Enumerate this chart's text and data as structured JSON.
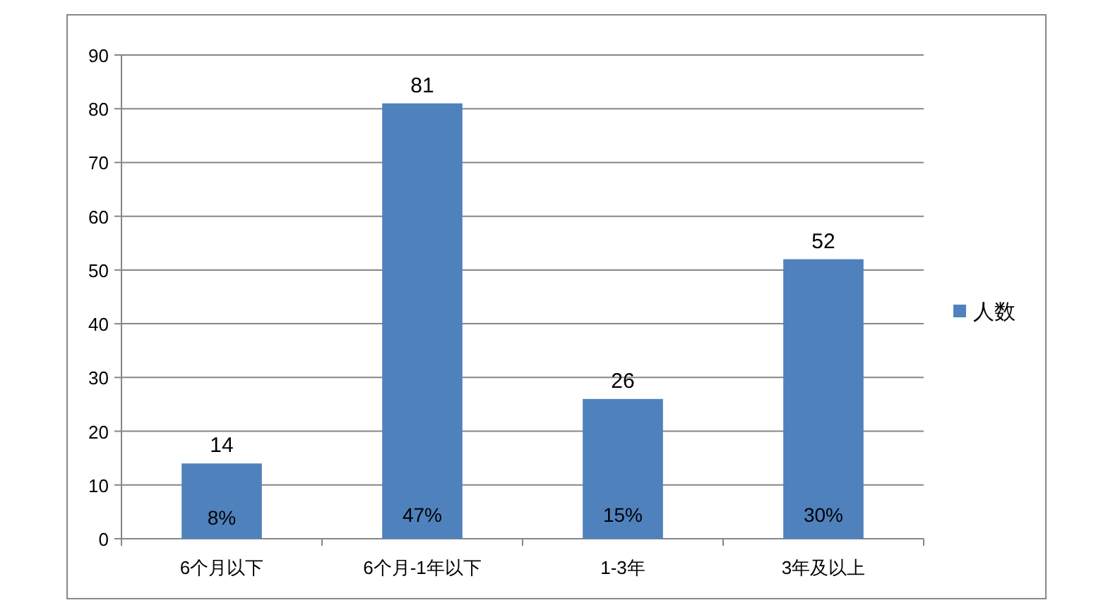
{
  "chart_data": {
    "type": "bar",
    "categories": [
      "6个月以下",
      "6个月-1年以下",
      "1-3年",
      "3年及以上"
    ],
    "series": [
      {
        "name": "人数",
        "color": "#4f81bd",
        "values": [
          14,
          81,
          26,
          52
        ]
      }
    ],
    "ylim": [
      0,
      90
    ],
    "yticks": [
      0,
      10,
      20,
      30,
      40,
      50,
      60,
      70,
      80,
      90
    ],
    "grid": "y",
    "legend": "right",
    "data_labels": true,
    "annotations": [
      "8%",
      "47%",
      "15%",
      "30%"
    ]
  }
}
